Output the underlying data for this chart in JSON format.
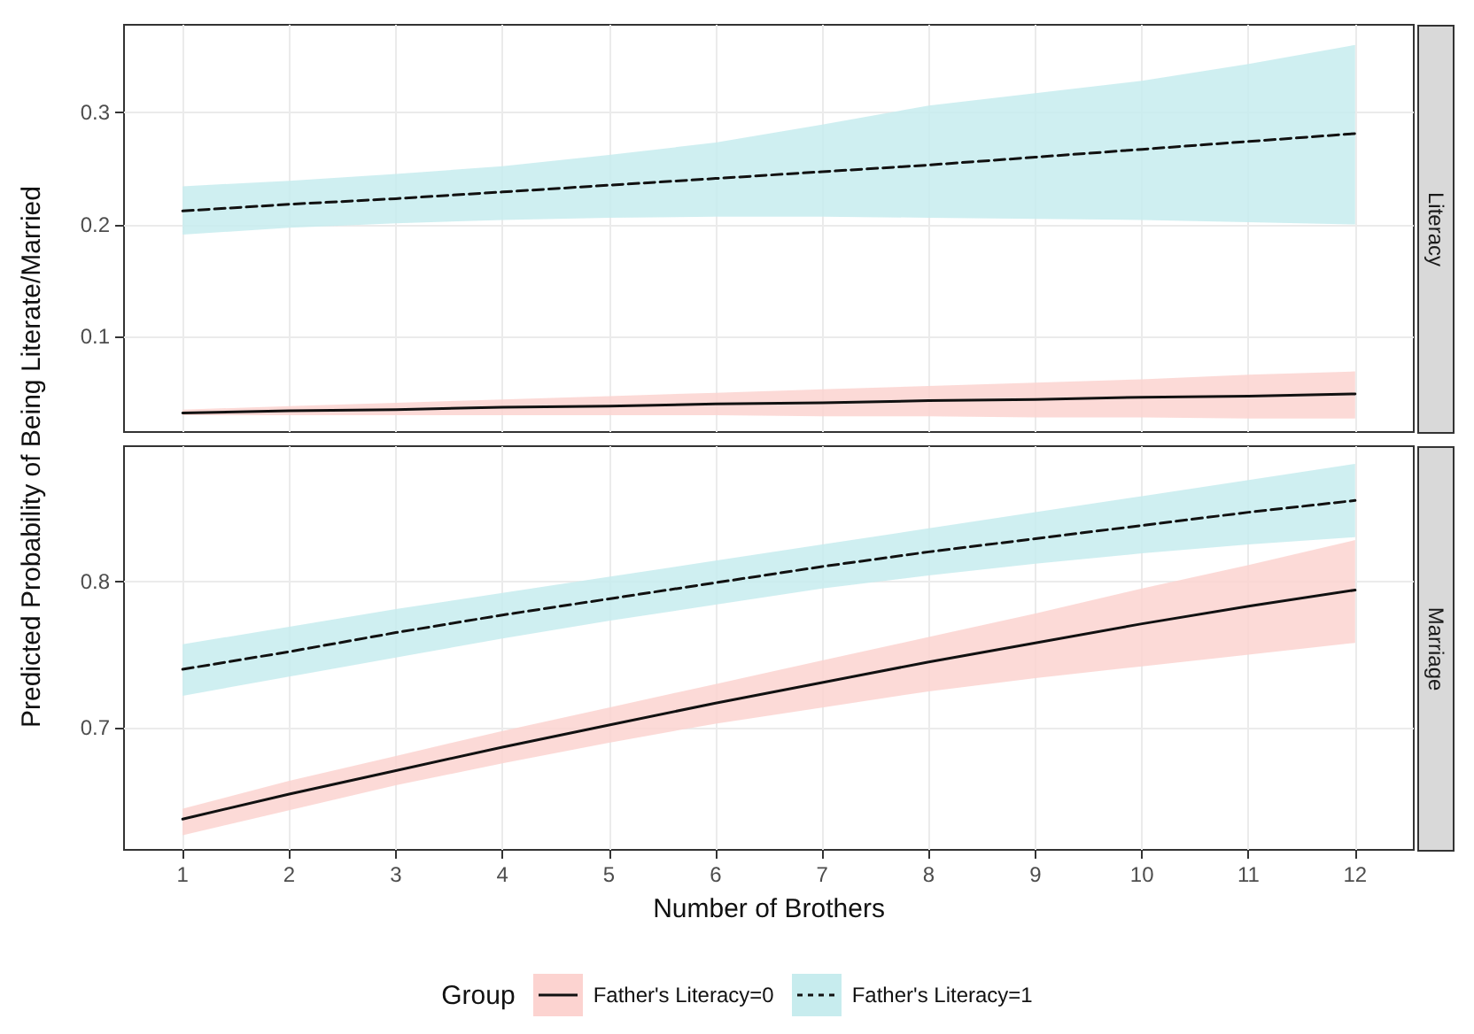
{
  "chart_data": [
    {
      "type": "line",
      "ylabel": "Predicted Probability of Being Literate/Married",
      "annotations": [
        "Literacy"
      ],
      "legend_title": "Group",
      "legend": "bottom",
      "x": [
        1,
        2,
        3,
        4,
        5,
        6,
        7,
        8,
        9,
        10,
        11,
        12
      ],
      "xlim": [
        0.45,
        12.55
      ],
      "xticks": [
        1,
        2,
        3,
        4,
        5,
        6,
        7,
        8,
        9,
        10,
        11,
        12
      ],
      "ylim": [
        0.015,
        0.378
      ],
      "yticks": [
        0.1,
        0.2,
        0.3
      ],
      "grid": true,
      "tick_labels": "y",
      "marker": "none",
      "series": [
        {
          "name": "Father's Literacy=0",
          "color": "#111111",
          "line_style": "solid",
          "values": [
            0.032,
            0.034,
            0.035,
            0.037,
            0.038,
            0.04,
            0.041,
            0.043,
            0.044,
            0.046,
            0.047,
            0.049
          ],
          "lower": [
            0.03,
            0.03,
            0.03,
            0.03,
            0.03,
            0.03,
            0.029,
            0.029,
            0.028,
            0.028,
            0.027,
            0.027
          ],
          "upper": [
            0.035,
            0.038,
            0.041,
            0.044,
            0.047,
            0.05,
            0.053,
            0.056,
            0.059,
            0.062,
            0.066,
            0.069
          ]
        },
        {
          "name": "Father's Literacy=1",
          "color": "#111111",
          "line_style": "dashed",
          "values": [
            0.212,
            0.218,
            0.223,
            0.229,
            0.235,
            0.241,
            0.247,
            0.253,
            0.26,
            0.267,
            0.274,
            0.281
          ],
          "lower": [
            0.191,
            0.197,
            0.201,
            0.204,
            0.206,
            0.207,
            0.207,
            0.206,
            0.205,
            0.204,
            0.202,
            0.2
          ],
          "upper": [
            0.234,
            0.239,
            0.245,
            0.252,
            0.262,
            0.273,
            0.289,
            0.306,
            0.317,
            0.328,
            0.343,
            0.36
          ]
        }
      ]
    },
    {
      "type": "line",
      "xlabel": "Number of Brothers",
      "annotations": [
        "Marriage"
      ],
      "x": [
        1,
        2,
        3,
        4,
        5,
        6,
        7,
        8,
        9,
        10,
        11,
        12
      ],
      "xlim": [
        0.45,
        12.55
      ],
      "xticks": [
        1,
        2,
        3,
        4,
        5,
        6,
        7,
        8,
        9,
        10,
        11,
        12
      ],
      "ylim": [
        0.617,
        0.892
      ],
      "yticks": [
        0.7,
        0.8
      ],
      "grid": true,
      "marker": "none",
      "series": [
        {
          "color": "#111111",
          "line_style": "solid",
          "values": [
            0.638,
            0.655,
            0.671,
            0.687,
            0.702,
            0.717,
            0.731,
            0.745,
            0.758,
            0.771,
            0.783,
            0.794
          ],
          "lower": [
            0.627,
            0.644,
            0.661,
            0.676,
            0.69,
            0.703,
            0.714,
            0.725,
            0.734,
            0.742,
            0.75,
            0.758
          ],
          "upper": [
            0.645,
            0.664,
            0.681,
            0.698,
            0.714,
            0.73,
            0.746,
            0.762,
            0.778,
            0.795,
            0.811,
            0.828
          ]
        },
        {
          "color": "#111111",
          "line_style": "dashed",
          "values": [
            0.74,
            0.752,
            0.765,
            0.777,
            0.788,
            0.799,
            0.81,
            0.82,
            0.829,
            0.838,
            0.847,
            0.855
          ],
          "lower": [
            0.722,
            0.735,
            0.748,
            0.761,
            0.773,
            0.784,
            0.795,
            0.804,
            0.812,
            0.819,
            0.825,
            0.83
          ],
          "upper": [
            0.757,
            0.769,
            0.781,
            0.792,
            0.803,
            0.814,
            0.825,
            0.836,
            0.847,
            0.858,
            0.869,
            0.88
          ]
        }
      ]
    }
  ]
}
